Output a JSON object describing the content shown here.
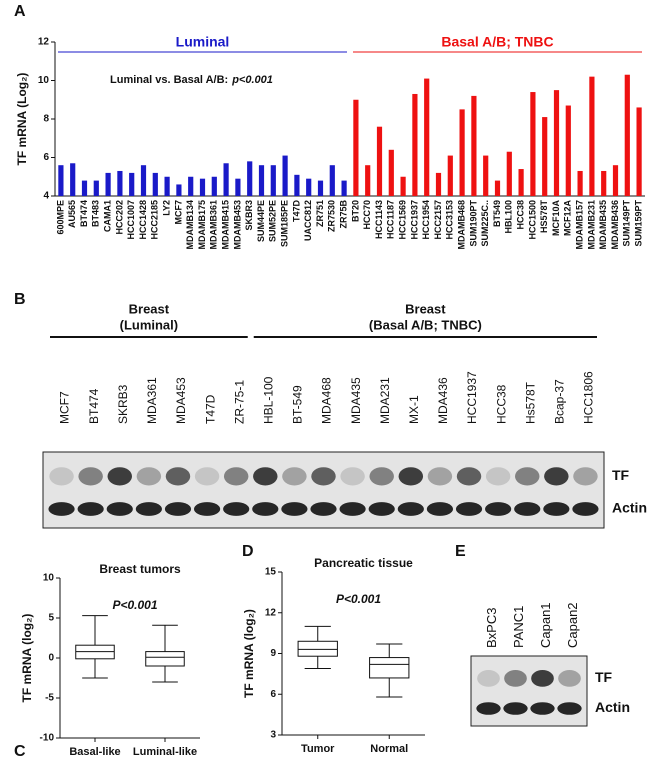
{
  "panel_labels": [
    "A",
    "B",
    "C",
    "D",
    "E"
  ],
  "chart_data": [
    {
      "type": "bar",
      "y_label": "TF mRNA (Log₂)",
      "annotation": "Luminal vs. Basal A/B:",
      "annotation_p": "p<0.001",
      "categories": [
        "600MPE",
        "AU565",
        "BT474",
        "BT483",
        "CAMA1",
        "HCC202",
        "HCC1007",
        "HCC1428",
        "HCC2185",
        "LY2",
        "MCF7",
        "MDAMB134",
        "MDAMB175",
        "MDAMB361",
        "MDAMB415",
        "MDAMB453",
        "SKBR3",
        "SUM44PE",
        "SUM52PE",
        "SUM185PE",
        "T47D",
        "UACC812",
        "ZR751",
        "ZR7530",
        "ZR75B",
        "BT20",
        "HCC70",
        "HCC1143",
        "HCC1187",
        "HCC1569",
        "HCC1937",
        "HCC1954",
        "HCC2157",
        "HCC3153",
        "MDAMB468",
        "SUM190PT",
        "SUM225C..",
        "BT549",
        "HBL100",
        "HCC38",
        "HCC1500",
        "HS578T",
        "MCF10A",
        "MCF12A",
        "MDAMB157",
        "MDAMB231",
        "MDAMB435",
        "MDAMB436",
        "SUM149PT",
        "SUM159PT"
      ],
      "series": [
        {
          "name": "Luminal",
          "color": "#1a1ac8",
          "values": [
            5.6,
            5.7,
            4.8,
            4.8,
            5.2,
            5.3,
            5.2,
            5.6,
            5.2,
            5.0,
            4.6,
            5.0,
            4.9,
            5.0,
            5.7,
            4.9,
            5.8,
            5.6,
            5.6,
            6.1,
            5.1,
            4.9,
            4.8,
            5.6,
            4.8,
            null,
            null,
            null,
            null,
            null,
            null,
            null,
            null,
            null,
            null,
            null,
            null,
            null,
            null,
            null,
            null,
            null,
            null,
            null,
            null,
            null,
            null,
            null,
            null,
            null
          ]
        },
        {
          "name": "Basal A/B; TNBC",
          "color": "#ee1111",
          "values": [
            null,
            null,
            null,
            null,
            null,
            null,
            null,
            null,
            null,
            null,
            null,
            null,
            null,
            null,
            null,
            null,
            null,
            null,
            null,
            null,
            null,
            null,
            null,
            null,
            null,
            9.0,
            5.6,
            7.6,
            6.4,
            5.0,
            9.3,
            10.1,
            5.2,
            6.1,
            8.5,
            9.2,
            6.1,
            4.8,
            6.3,
            5.4,
            9.4,
            8.1,
            9.5,
            8.7,
            5.3,
            10.2,
            5.3,
            5.6,
            10.3,
            8.6
          ]
        }
      ],
      "ylim": [
        4,
        12
      ],
      "yticks": [
        4,
        6,
        8,
        10,
        12
      ]
    },
    {
      "type": "box",
      "title": "Breast tumors",
      "annotation": "P<0.001",
      "y_label": "TF mRNA (log₂)",
      "categories": [
        "Basal-like",
        "Luminal-like"
      ],
      "boxes": [
        {
          "min": -2.5,
          "q1": -0.1,
          "median": 0.8,
          "q3": 1.6,
          "max": 5.3
        },
        {
          "min": -3.0,
          "q1": -1.0,
          "median": 0.1,
          "q3": 0.8,
          "max": 4.1
        }
      ],
      "ylim": [
        -10,
        10
      ],
      "yticks": [
        -10,
        -5,
        0,
        5,
        10
      ]
    },
    {
      "type": "box",
      "title": "Pancreatic tissue",
      "annotation": "P<0.001",
      "y_label": "TF mRNA (log₂)",
      "categories": [
        "Tumor",
        "Normal"
      ],
      "boxes": [
        {
          "min": 7.9,
          "q1": 8.8,
          "median": 9.3,
          "q3": 9.9,
          "max": 11.0
        },
        {
          "min": 5.8,
          "q1": 7.2,
          "median": 8.2,
          "q3": 8.7,
          "max": 9.7
        }
      ],
      "ylim": [
        3,
        15
      ],
      "yticks": [
        3,
        6,
        9,
        12,
        15
      ]
    }
  ],
  "blots": [
    {
      "groups": [
        {
          "title": "Breast",
          "subtitle": "(Luminal)"
        },
        {
          "title": "Breast",
          "subtitle": "(Basal A/B; TNBC)"
        }
      ],
      "lanes": [
        "MCF7",
        "BT474",
        "SKRB3",
        "MDA361",
        "MDA453",
        "T47D",
        "ZR-75-1",
        "HBL-100",
        "BT-549",
        "MDA468",
        "MDA435",
        "MDA231",
        "MX-1",
        "MDA436",
        "HCC1937",
        "HCC38",
        "Hs578T",
        "Bcap-37",
        "HCC1806"
      ],
      "bands": [
        "TF",
        "Actin"
      ]
    },
    {
      "lanes": [
        "BxPC3",
        "PANC1",
        "Capan1",
        "Capan2"
      ],
      "bands": [
        "TF",
        "Actin"
      ]
    }
  ]
}
